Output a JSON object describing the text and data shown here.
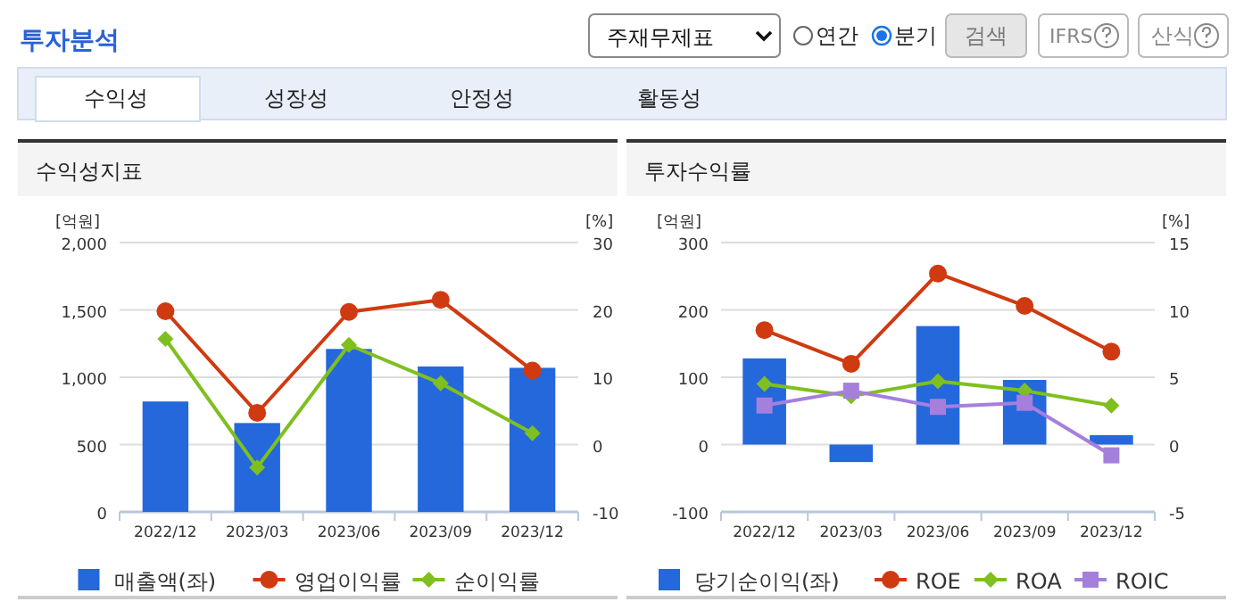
{
  "chart_data": [
    {
      "type": "other",
      "title": "투자분석",
      "annotations": [
        "주재무제표",
        "연간",
        "분기",
        "검색",
        "IFRS",
        "산식",
        "수익성",
        "성장성",
        "안정성",
        "활동성"
      ]
    },
    {
      "type": "bar",
      "title": "수익성지표",
      "ylabel": "[억원]",
      "y2label": "[%]",
      "categories": [
        "2022/12",
        "2023/03",
        "2023/06",
        "2023/09",
        "2023/12"
      ],
      "series": [
        {
          "name": "매출액(좌)",
          "type": "bar",
          "color": "#2468dc",
          "values": [
            820,
            660,
            1210,
            1080,
            1070
          ]
        },
        {
          "name": "영업이익률",
          "type": "line",
          "axis": "y2",
          "marker": "circle",
          "color": "#d03a10",
          "values": [
            19.8,
            4.7,
            19.7,
            21.5,
            11.0
          ]
        },
        {
          "name": "순이익률",
          "type": "line",
          "axis": "y2",
          "marker": "diamond",
          "color": "#7fbf1f",
          "values": [
            15.7,
            -3.4,
            14.8,
            9.1,
            1.7
          ]
        }
      ],
      "ylim": [
        0,
        2000
      ],
      "yticks": [
        0,
        500,
        {
          "value": 1000,
          "label": "1,000"
        },
        {
          "value": 1500,
          "label": "1,500"
        },
        {
          "value": 2000,
          "label": "2,000"
        }
      ],
      "y2lim": [
        -10,
        30
      ],
      "y2ticks": [
        -10,
        0,
        10,
        20,
        30
      ],
      "grid": "y",
      "legend": "bottom"
    },
    {
      "type": "bar",
      "title": "투자수익률",
      "ylabel": "[억원]",
      "y2label": "[%]",
      "categories": [
        "2022/12",
        "2023/03",
        "2023/06",
        "2023/09",
        "2023/12"
      ],
      "series": [
        {
          "name": "당기순이익(좌)",
          "type": "bar",
          "color": "#2468dc",
          "values": [
            128,
            -26,
            176,
            96,
            14
          ]
        },
        {
          "name": "ROE",
          "type": "line",
          "axis": "y2",
          "marker": "circle",
          "color": "#d03a10",
          "values": [
            8.5,
            6.0,
            12.7,
            10.3,
            6.9
          ]
        },
        {
          "name": "ROA",
          "type": "line",
          "axis": "y2",
          "marker": "diamond",
          "color": "#7fbf1f",
          "values": [
            4.5,
            3.6,
            4.7,
            4.0,
            2.9
          ]
        },
        {
          "name": "ROIC",
          "type": "line",
          "axis": "y2",
          "marker": "square",
          "color": "#a57fdc",
          "values": [
            2.9,
            4.0,
            2.8,
            3.1,
            -0.8
          ]
        }
      ],
      "ylim": [
        -100,
        300
      ],
      "yticks": [
        -100,
        0,
        100,
        200,
        300
      ],
      "y2lim": [
        -5,
        15
      ],
      "y2ticks": [
        -5,
        0,
        5,
        10,
        15
      ],
      "grid": "y",
      "legend": "bottom"
    }
  ]
}
